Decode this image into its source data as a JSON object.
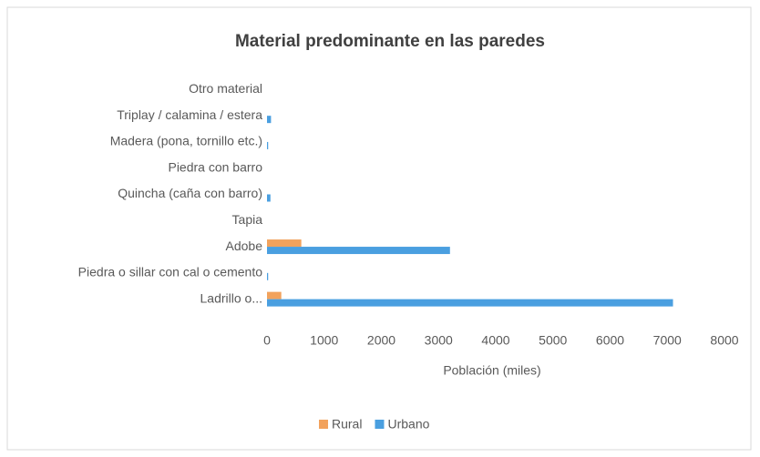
{
  "chart_data": {
    "type": "bar",
    "orientation": "horizontal",
    "title": "Material predominante en las paredes",
    "x_label": "Población (miles)",
    "categories": [
      "Otro material",
      "Triplay / calamina / estera",
      "Madera (pona, tornillo etc.)",
      "Piedra con barro",
      "Quincha (caña con barro)",
      "Tapia",
      "Adobe",
      "Piedra o sillar con cal o cemento",
      "Ladrillo o..."
    ],
    "series": [
      {
        "name": "Rural",
        "color": "#f2a25c",
        "values": [
          0,
          0,
          0,
          0,
          0,
          0,
          600,
          0,
          250
        ]
      },
      {
        "name": "Urbano",
        "color": "#4a9fe0",
        "values": [
          0,
          70,
          20,
          0,
          60,
          0,
          3200,
          20,
          7100
        ]
      }
    ],
    "xlim": [
      0,
      8000
    ],
    "xticks": [
      0,
      1000,
      2000,
      3000,
      4000,
      5000,
      6000,
      7000,
      8000
    ],
    "legend": "bottom"
  }
}
